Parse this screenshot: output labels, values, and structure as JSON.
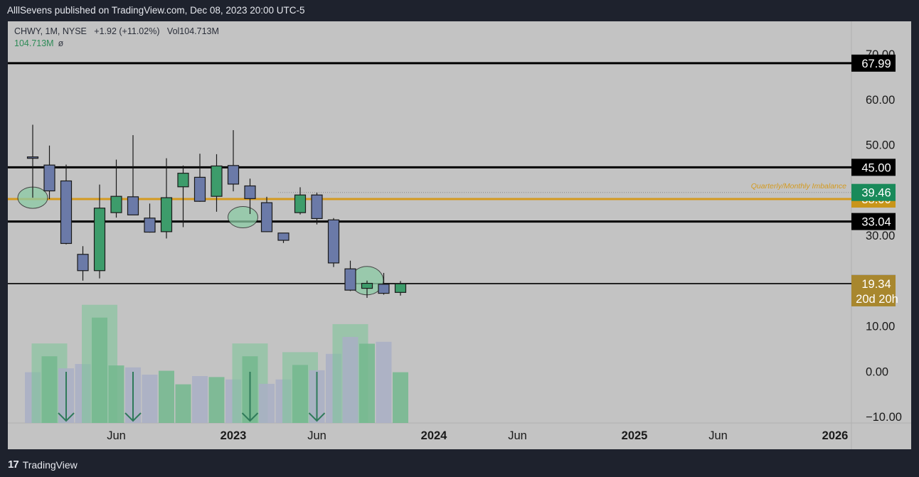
{
  "header": {
    "published_text": "AlllSevens published on TradingView.com, Dec 08, 2023 20:00 UTC-5"
  },
  "legend": {
    "symbol_line": "CHWY, 1M, NYSE",
    "change": "+1.92 (+11.02%)",
    "volume": "Vol104.713M",
    "volume_value": "104.713M",
    "volume_extra": "ø"
  },
  "footer": {
    "brand_mark": "17",
    "brand": "TradingView"
  },
  "colors": {
    "background": "#c3c3c3",
    "up_candle": "#3d9c6b",
    "down_candle": "#6b7aa8",
    "level_line": "#000000",
    "imbalance_line": "#d49a1f",
    "price_label_dark": "#000000",
    "price_label_green": "#198a5a",
    "price_label_gold": "#c9951a",
    "current_label": "#a8872e"
  },
  "chart_data": {
    "type": "candlestick",
    "symbol": "CHWY",
    "interval": "1M",
    "exchange": "NYSE",
    "x_tick_labels": [
      "Jun",
      "2023",
      "Jun",
      "2024",
      "Jun",
      "2025",
      "Jun",
      "2026"
    ],
    "y_tick_labels": [
      "70.00",
      "60.00",
      "50.00",
      "30.00",
      "10.00",
      "0.00",
      "−10.00"
    ],
    "ylim": [
      -10,
      70
    ],
    "candles": [
      {
        "month": "2022-01",
        "open": 47.3,
        "high": 54.4,
        "low": 38.3,
        "close": 47.0
      },
      {
        "month": "2022-02",
        "open": 45.5,
        "high": 49.8,
        "low": 38.0,
        "close": 39.8
      },
      {
        "month": "2022-03",
        "open": 42.0,
        "high": 45.6,
        "low": 28.0,
        "close": 28.2
      },
      {
        "month": "2022-04",
        "open": 25.8,
        "high": 27.6,
        "low": 20.0,
        "close": 22.2
      },
      {
        "month": "2022-05",
        "open": 22.2,
        "high": 41.2,
        "low": 20.5,
        "close": 36.0
      },
      {
        "month": "2022-06",
        "open": 35.0,
        "high": 46.7,
        "low": 33.9,
        "close": 38.6
      },
      {
        "month": "2022-07",
        "open": 38.5,
        "high": 52.1,
        "low": 34.6,
        "close": 34.5
      },
      {
        "month": "2022-08",
        "open": 33.8,
        "high": 37.0,
        "low": 30.6,
        "close": 30.7
      },
      {
        "month": "2022-09",
        "open": 30.8,
        "high": 47.0,
        "low": 29.3,
        "close": 38.3
      },
      {
        "month": "2022-10",
        "open": 40.7,
        "high": 45.4,
        "low": 31.8,
        "close": 43.7
      },
      {
        "month": "2022-11",
        "open": 42.8,
        "high": 48.0,
        "low": 37.4,
        "close": 37.5
      },
      {
        "month": "2022-12",
        "open": 38.6,
        "high": 47.9,
        "low": 35.2,
        "close": 45.3
      },
      {
        "month": "2023-01",
        "open": 45.4,
        "high": 53.2,
        "low": 39.7,
        "close": 41.3
      },
      {
        "month": "2023-02",
        "open": 40.9,
        "high": 42.5,
        "low": 34.7,
        "close": 38.1
      },
      {
        "month": "2023-03",
        "open": 37.2,
        "high": 38.5,
        "low": 30.7,
        "close": 30.8
      },
      {
        "month": "2023-04",
        "open": 30.5,
        "high": 30.5,
        "low": 28.3,
        "close": 28.9
      },
      {
        "month": "2023-05",
        "open": 35.0,
        "high": 40.6,
        "low": 34.6,
        "close": 38.9
      },
      {
        "month": "2023-06",
        "open": 38.9,
        "high": 39.4,
        "low": 32.4,
        "close": 33.7
      },
      {
        "month": "2023-07",
        "open": 33.4,
        "high": 33.8,
        "low": 23.0,
        "close": 23.9
      },
      {
        "month": "2023-08",
        "open": 22.6,
        "high": 24.4,
        "low": 17.7,
        "close": 17.9
      },
      {
        "month": "2023-09",
        "open": 18.3,
        "high": 20.0,
        "low": 16.2,
        "close": 19.4
      },
      {
        "month": "2023-10",
        "open": 19.2,
        "high": 21.7,
        "low": 16.9,
        "close": 17.2
      },
      {
        "month": "2023-11",
        "open": 17.4,
        "high": 19.9,
        "low": 16.7,
        "close": 19.3
      }
    ],
    "volume": [
      {
        "month": "2022-01",
        "value": 1.05,
        "up": false
      },
      {
        "month": "2022-02",
        "value": 1.38,
        "up": true
      },
      {
        "month": "2022-03",
        "value": 1.13,
        "up": false
      },
      {
        "month": "2022-04",
        "value": 1.22,
        "up": false
      },
      {
        "month": "2022-05",
        "value": 2.18,
        "up": true
      },
      {
        "month": "2022-06",
        "value": 1.19,
        "up": true
      },
      {
        "month": "2022-07",
        "value": 1.15,
        "up": false
      },
      {
        "month": "2022-08",
        "value": 1.0,
        "up": false
      },
      {
        "month": "2022-09",
        "value": 1.08,
        "up": true
      },
      {
        "month": "2022-10",
        "value": 0.8,
        "up": true
      },
      {
        "month": "2022-11",
        "value": 0.97,
        "up": false
      },
      {
        "month": "2022-12",
        "value": 0.95,
        "up": true
      },
      {
        "month": "2023-01",
        "value": 0.9,
        "up": false
      },
      {
        "month": "2023-02",
        "value": 1.38,
        "up": true
      },
      {
        "month": "2023-03",
        "value": 0.81,
        "up": false
      },
      {
        "month": "2023-04",
        "value": 0.9,
        "up": false
      },
      {
        "month": "2023-05",
        "value": 1.2,
        "up": true
      },
      {
        "month": "2023-06",
        "value": 1.09,
        "up": false
      },
      {
        "month": "2023-07",
        "value": 1.43,
        "up": false
      },
      {
        "month": "2023-08",
        "value": 1.78,
        "up": false
      },
      {
        "month": "2023-09",
        "value": 1.64,
        "up": true
      },
      {
        "month": "2023-10",
        "value": 1.68,
        "up": false
      },
      {
        "month": "2023-11",
        "value": 1.05,
        "up": true
      }
    ],
    "volume_highlight_months": [
      "2022-02",
      "2022-05",
      "2023-02",
      "2023-05",
      "2023-08"
    ],
    "volume_arrow_months": [
      "2022-03",
      "2022-07",
      "2023-02",
      "2023-06"
    ],
    "horizontal_levels": [
      {
        "price": 67.99,
        "label": "67.99",
        "style": "black"
      },
      {
        "price": 45.0,
        "label": "45.00",
        "style": "black"
      },
      {
        "price": 38.0,
        "label": "38.00",
        "style": "gold"
      },
      {
        "price": 33.04,
        "label": "33.04",
        "style": "black"
      },
      {
        "price": 19.35,
        "label": "19.35",
        "style": "black-thin"
      }
    ],
    "price_labels": [
      {
        "price": 39.46,
        "label": "39.46",
        "style": "green"
      }
    ],
    "current_price": {
      "price": 19.34,
      "label": "19.34",
      "countdown": "20d 20h"
    },
    "dotted_reference_price": 39.46,
    "imbalance_annotation": "Quarterly/Monthly Imbalance",
    "ellipse_months": [
      "2022-01",
      "2023-02",
      "2023-09"
    ]
  }
}
